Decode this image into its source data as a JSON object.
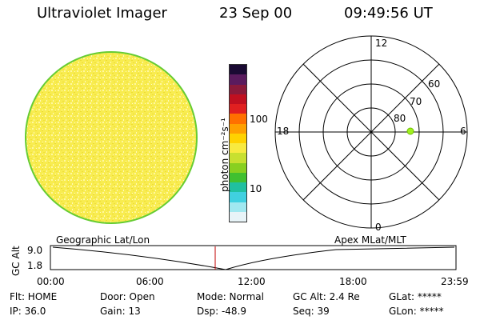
{
  "header": {
    "instrument": "Ultraviolet Imager",
    "date": "23 Sep 00",
    "time": "09:49:56 UT"
  },
  "colorbar": {
    "label": "photon cm⁻²s⁻¹",
    "ticks": [
      "100",
      "10"
    ],
    "colors": [
      "#1a0a33",
      "#5a1b5e",
      "#8a1a3a",
      "#c01020",
      "#e02020",
      "#ff7000",
      "#ffa000",
      "#ffd200",
      "#f8ea40",
      "#c8e030",
      "#88d020",
      "#40c030",
      "#20c0a0",
      "#40d0e0",
      "#a0e8f0",
      "#e8f4f8"
    ]
  },
  "polar_plot": {
    "mlt_labels": {
      "top": "12",
      "left": "18",
      "right": "6",
      "bottom": "0"
    },
    "lat_labels": [
      "60",
      "70",
      "80"
    ],
    "spot_color": "#a0f020"
  },
  "timeline": {
    "left_title": "Geographic Lat/Lon",
    "right_title": "Apex MLat/MLT",
    "ylabel": "GC Alt",
    "ymax": "9.0",
    "ymin": "1.8",
    "xticks": [
      "00:00",
      "06:00",
      "12:00",
      "18:00",
      "23:59"
    ],
    "marker_color": "#c00000"
  },
  "status": {
    "flt": "Flt: HOME",
    "ip": "IP: 36.0",
    "door": "Door: Open",
    "gain": "Gain: 13",
    "mode": "Mode: Normal",
    "dsp": "Dsp:  -48.9",
    "gcalt": "GC Alt: 2.4 Re",
    "seq": "Seq: 39",
    "glat": "GLat: *****",
    "glon": "GLon: *****"
  },
  "image_colors": {
    "disk_fill": "#f6ea4a",
    "disk_edge": "#6ad02a"
  }
}
